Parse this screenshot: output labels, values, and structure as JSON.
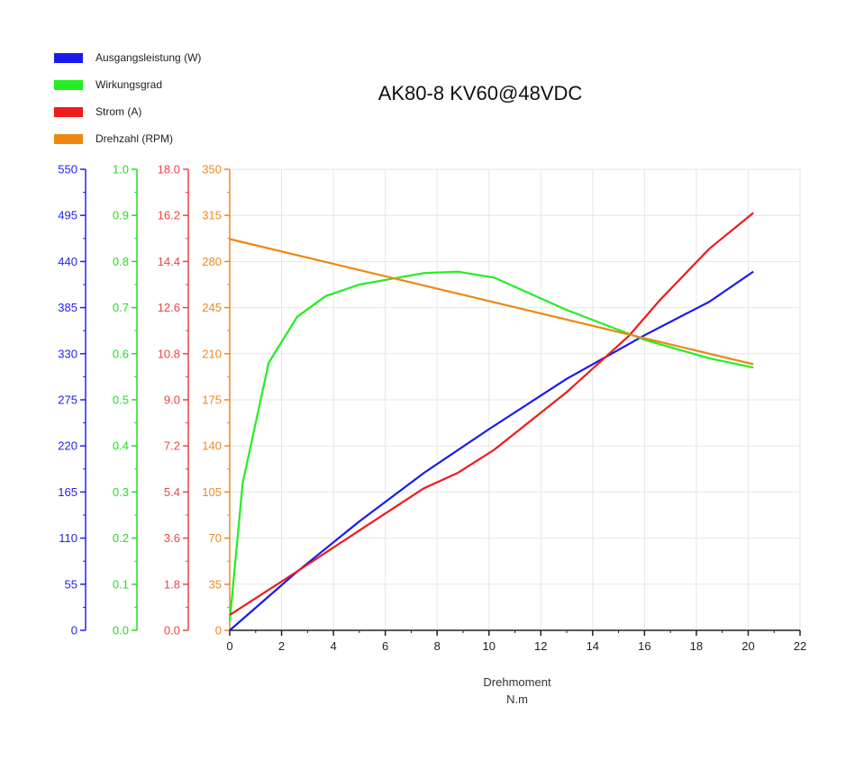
{
  "chart_data": {
    "type": "line",
    "title": "AK80-8 KV60@48VDC",
    "xlabel": "Drehmoment",
    "xlabel_unit": "N.m",
    "xlim": [
      0,
      22
    ],
    "x_ticks": [
      "0",
      "2",
      "4",
      "6",
      "8",
      "10",
      "12",
      "14",
      "16",
      "18",
      "20",
      "22"
    ],
    "grid": true,
    "legend_position": "top-left",
    "axes": [
      {
        "id": "power",
        "color": "#2222ee",
        "lim": [
          0,
          550
        ],
        "ticks": [
          "0",
          "55",
          "110",
          "165",
          "220",
          "275",
          "330",
          "385",
          "440",
          "495",
          "550"
        ]
      },
      {
        "id": "eff",
        "color": "#22dd22",
        "lim": [
          0,
          1.0
        ],
        "ticks": [
          "0.0",
          "0.1",
          "0.2",
          "0.3",
          "0.4",
          "0.5",
          "0.6",
          "0.7",
          "0.8",
          "0.9",
          "1.0"
        ]
      },
      {
        "id": "current",
        "color": "#ee4444",
        "lim": [
          0,
          18.0
        ],
        "ticks": [
          "0.0",
          "1.8",
          "3.6",
          "5.4",
          "7.2",
          "9.0",
          "10.8",
          "12.6",
          "14.4",
          "16.2",
          "18.0"
        ]
      },
      {
        "id": "rpm",
        "color": "#ee8822",
        "lim": [
          0,
          350
        ],
        "ticks": [
          "0",
          "35",
          "70",
          "105",
          "140",
          "175",
          "210",
          "245",
          "280",
          "315",
          "350"
        ]
      }
    ],
    "series": [
      {
        "name": "Ausgangsleistung (W)",
        "axis": "power",
        "color": "#1a1aee",
        "x": [
          0,
          2.6,
          5,
          7.5,
          10,
          13,
          16,
          18.5,
          20.2
        ],
        "y": [
          0,
          70,
          130,
          188,
          240,
          300,
          352,
          392,
          428
        ]
      },
      {
        "name": "Wirkungsgrad",
        "axis": "eff",
        "color": "#22ee22",
        "x": [
          0,
          0.5,
          1.5,
          2.6,
          3.7,
          5,
          6,
          7.5,
          8.8,
          10.2,
          13,
          16,
          18.5,
          20.2
        ],
        "y": [
          0.02,
          0.32,
          0.58,
          0.68,
          0.725,
          0.75,
          0.76,
          0.775,
          0.778,
          0.765,
          0.695,
          0.63,
          0.59,
          0.57
        ]
      },
      {
        "name": "Strom (A)",
        "axis": "current",
        "color": "#ee1c1c",
        "x": [
          0,
          2.6,
          5,
          7.5,
          8.8,
          10.2,
          13,
          15.4,
          16.6,
          18.5,
          20.2
        ],
        "y": [
          0.6,
          2.3,
          3.9,
          5.55,
          6.15,
          7.05,
          9.3,
          11.5,
          12.9,
          14.9,
          16.3
        ]
      },
      {
        "name": "Drehzahl (RPM)",
        "axis": "rpm",
        "color": "#ee8811",
        "x": [
          0,
          20.2
        ],
        "y": [
          297,
          202
        ]
      }
    ]
  }
}
